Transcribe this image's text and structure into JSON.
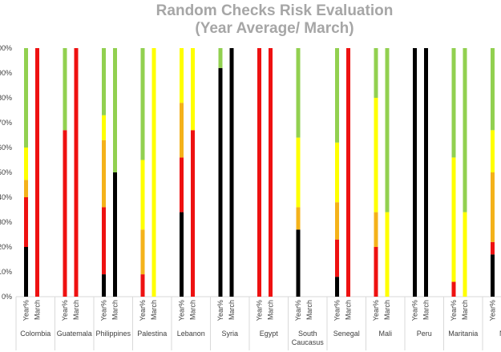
{
  "chart_data": {
    "type": "bar",
    "stacked": true,
    "title": "Random Checks Risk Evaluation",
    "subtitle": "(Year Average/ March)",
    "ylim": [
      0,
      100
    ],
    "y_ticks": [
      "0%",
      "10%",
      "20%",
      "30%",
      "40%",
      "50%",
      "60%",
      "70%",
      "80%",
      "90%",
      "100%"
    ],
    "sub_labels": [
      "Year%",
      "March"
    ],
    "series_names": [
      "Black",
      "Red",
      "Orange",
      "Yellow",
      "Green"
    ],
    "colors": {
      "Black": "#000000",
      "Red": "#ee1111",
      "Orange": "#f4b21a",
      "Yellow": "#ffff00",
      "Green": "#92d050"
    },
    "groups": [
      {
        "name": "Colombia",
        "label_lines": [
          "Colombia"
        ],
        "bars": [
          [
            20,
            20,
            7,
            13,
            40
          ],
          [
            0,
            100,
            0,
            0,
            0
          ]
        ]
      },
      {
        "name": "Guatemala",
        "label_lines": [
          "Guatemala"
        ],
        "bars": [
          [
            0,
            67,
            0,
            0,
            33
          ],
          [
            0,
            100,
            0,
            0,
            0
          ]
        ]
      },
      {
        "name": "Philippines",
        "label_lines": [
          "Philippines"
        ],
        "bars": [
          [
            9,
            27,
            27,
            10,
            27
          ],
          [
            50,
            0,
            0,
            0,
            50
          ]
        ]
      },
      {
        "name": "Palestina",
        "label_lines": [
          "Palestina"
        ],
        "bars": [
          [
            0,
            9,
            18,
            28,
            45
          ],
          [
            0,
            0,
            0,
            100,
            0
          ]
        ]
      },
      {
        "name": "Lebanon",
        "label_lines": [
          "Lebanon"
        ],
        "bars": [
          [
            34,
            22,
            22,
            22,
            0
          ],
          [
            0,
            67,
            0,
            33,
            0
          ]
        ]
      },
      {
        "name": "Syria",
        "label_lines": [
          "Syria"
        ],
        "bars": [
          [
            92,
            0,
            0,
            0,
            8
          ],
          [
            100,
            0,
            0,
            0,
            0
          ]
        ]
      },
      {
        "name": "Egypt",
        "label_lines": [
          "Egypt"
        ],
        "bars": [
          [
            0,
            100,
            0,
            0,
            0
          ],
          [
            0,
            100,
            0,
            0,
            0
          ]
        ]
      },
      {
        "name": "South Caucasus",
        "label_lines": [
          "South",
          "Caucasus"
        ],
        "bars": [
          [
            27,
            0,
            9,
            28,
            36
          ],
          [
            0,
            0,
            0,
            0,
            0
          ]
        ]
      },
      {
        "name": "Senegal",
        "label_lines": [
          "Senegal"
        ],
        "bars": [
          [
            8,
            15,
            15,
            24,
            38
          ],
          [
            0,
            100,
            0,
            0,
            0
          ]
        ]
      },
      {
        "name": "Mali",
        "label_lines": [
          "Mali"
        ],
        "bars": [
          [
            0,
            20,
            14,
            46,
            20
          ],
          [
            0,
            0,
            0,
            34,
            66
          ]
        ]
      },
      {
        "name": "Peru",
        "label_lines": [
          "Peru"
        ],
        "bars": [
          [
            100,
            0,
            0,
            0,
            0
          ],
          [
            100,
            0,
            0,
            0,
            0
          ]
        ]
      },
      {
        "name": "Maritania",
        "label_lines": [
          "Maritania"
        ],
        "bars": [
          [
            0,
            6,
            0,
            50,
            44
          ],
          [
            0,
            0,
            0,
            34,
            66
          ]
        ]
      },
      {
        "name": "N",
        "label_lines": [
          "N"
        ],
        "bars": [
          [
            17,
            5,
            28,
            17,
            33
          ],
          [
            0,
            0,
            0,
            0,
            0
          ]
        ]
      }
    ]
  }
}
